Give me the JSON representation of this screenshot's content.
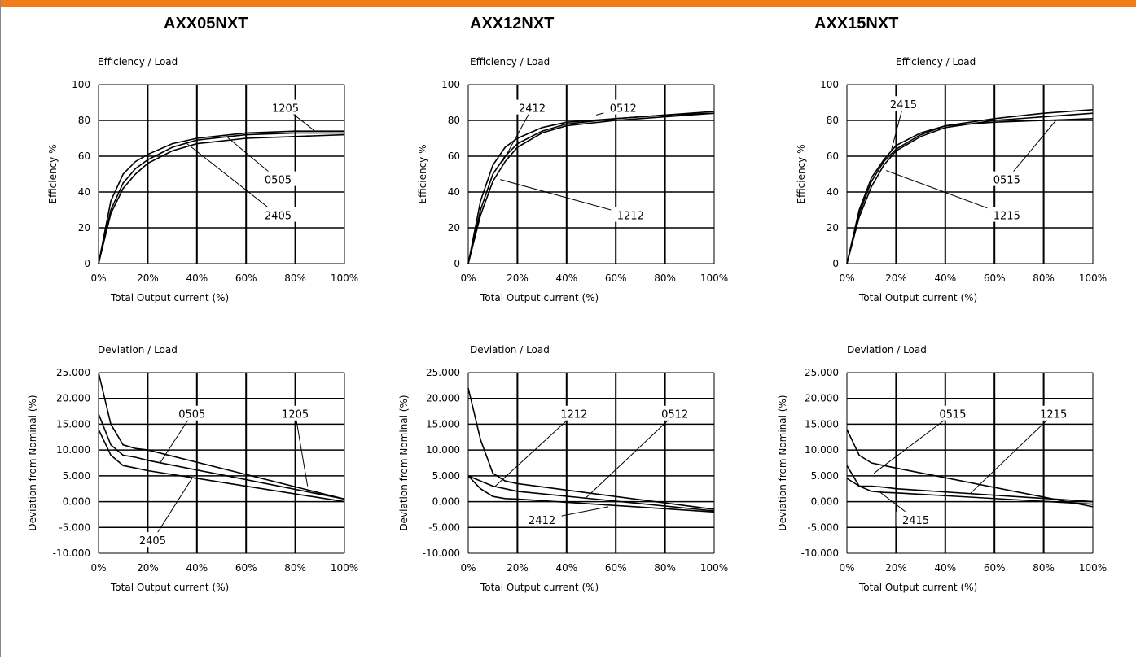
{
  "header": {
    "accent_color": "#f07c1a"
  },
  "models": [
    {
      "title": "AXX05NXT"
    },
    {
      "title": "AXX12NXT"
    },
    {
      "title": "AXX15NXT"
    }
  ],
  "chart_data": [
    {
      "id": "eff-05",
      "type": "line",
      "title": "Efficiency / Load",
      "xlabel": "Total Output current (%)",
      "ylabel": "Efficiency %",
      "xlim": [
        0,
        100
      ],
      "ylim": [
        0,
        100
      ],
      "xticks": [
        "0%",
        "20%",
        "40%",
        "60%",
        "80%",
        "100%"
      ],
      "yticks": [
        "0",
        "20",
        "40",
        "60",
        "80",
        "100"
      ],
      "series": [
        {
          "name": "1205",
          "x": [
            0,
            5,
            10,
            15,
            20,
            30,
            40,
            60,
            80,
            100
          ],
          "y": [
            0,
            35,
            50,
            57,
            61,
            67,
            70,
            73,
            74,
            74
          ]
        },
        {
          "name": "0505",
          "x": [
            0,
            5,
            10,
            15,
            20,
            30,
            40,
            60,
            80,
            100
          ],
          "y": [
            0,
            30,
            45,
            53,
            58,
            65,
            69,
            72,
            73,
            73
          ]
        },
        {
          "name": "2405",
          "x": [
            0,
            5,
            10,
            15,
            20,
            30,
            40,
            60,
            80,
            100
          ],
          "y": [
            0,
            28,
            42,
            50,
            56,
            63,
            67,
            70,
            71,
            72
          ]
        }
      ],
      "annotations": [
        {
          "text": "1205",
          "x": 76,
          "y": 87,
          "tx": 88,
          "ty": 74
        },
        {
          "text": "0505",
          "x": 73,
          "y": 47,
          "tx": 52,
          "ty": 71
        },
        {
          "text": "2405",
          "x": 73,
          "y": 27,
          "tx": 36,
          "ty": 67
        }
      ]
    },
    {
      "id": "eff-12",
      "type": "line",
      "title": "Efficiency / Load",
      "xlabel": "Total Output current (%)",
      "ylabel": "Efficiency %",
      "xlim": [
        0,
        100
      ],
      "ylim": [
        0,
        100
      ],
      "xticks": [
        "0%",
        "20%",
        "40%",
        "60%",
        "80%",
        "100%"
      ],
      "yticks": [
        "0",
        "20",
        "40",
        "60",
        "80",
        "100"
      ],
      "series": [
        {
          "name": "0512",
          "x": [
            0,
            5,
            10,
            15,
            20,
            30,
            40,
            60,
            80,
            100
          ],
          "y": [
            0,
            35,
            55,
            65,
            70,
            76,
            79,
            81,
            83,
            84
          ]
        },
        {
          "name": "2412",
          "x": [
            0,
            5,
            10,
            15,
            20,
            30,
            40,
            60,
            80,
            100
          ],
          "y": [
            0,
            30,
            50,
            60,
            67,
            74,
            78,
            81,
            83,
            85
          ]
        },
        {
          "name": "1212",
          "x": [
            0,
            5,
            10,
            15,
            20,
            30,
            40,
            60,
            80,
            100
          ],
          "y": [
            0,
            27,
            46,
            57,
            65,
            73,
            77,
            80,
            82,
            84
          ]
        }
      ],
      "annotations": [
        {
          "text": "2412",
          "x": 26,
          "y": 87,
          "tx": 14,
          "ty": 57
        },
        {
          "text": "0512",
          "x": 63,
          "y": 87,
          "tx": 52,
          "ty": 83
        },
        {
          "text": "1212",
          "x": 66,
          "y": 27,
          "tx": 13,
          "ty": 47
        }
      ]
    },
    {
      "id": "eff-15",
      "type": "line",
      "title": "Efficiency / Load",
      "xlabel": "Total Output current (%)",
      "ylabel": "Efficiency %",
      "xlim": [
        0,
        100
      ],
      "ylim": [
        0,
        100
      ],
      "xticks": [
        "0%",
        "20%",
        "40%",
        "60%",
        "80%",
        "100%"
      ],
      "yticks": [
        "0",
        "20",
        "40",
        "60",
        "80",
        "100"
      ],
      "series": [
        {
          "name": "2415",
          "x": [
            0,
            5,
            10,
            15,
            20,
            30,
            40,
            60,
            80,
            100
          ],
          "y": [
            0,
            30,
            48,
            58,
            66,
            73,
            77,
            81,
            84,
            86
          ]
        },
        {
          "name": "0515",
          "x": [
            0,
            5,
            10,
            15,
            20,
            30,
            40,
            60,
            80,
            100
          ],
          "y": [
            0,
            28,
            46,
            57,
            64,
            72,
            77,
            79,
            80,
            81
          ]
        },
        {
          "name": "1215",
          "x": [
            0,
            5,
            10,
            15,
            20,
            30,
            40,
            60,
            80,
            100
          ],
          "y": [
            0,
            26,
            43,
            55,
            63,
            71,
            76,
            80,
            82,
            84
          ]
        }
      ],
      "annotations": [
        {
          "text": "2415",
          "x": 23,
          "y": 89,
          "tx": 18,
          "ty": 63
        },
        {
          "text": "0515",
          "x": 65,
          "y": 47,
          "tx": 85,
          "ty": 80
        },
        {
          "text": "1215",
          "x": 65,
          "y": 27,
          "tx": 16,
          "ty": 52
        }
      ]
    },
    {
      "id": "dev-05",
      "type": "line",
      "title": "Deviation / Load",
      "xlabel": "Total Output current (%)",
      "ylabel": "Deviation from Nominal (%)",
      "xlim": [
        0,
        100
      ],
      "ylim": [
        -10,
        25
      ],
      "xticks": [
        "0%",
        "20%",
        "40%",
        "60%",
        "80%",
        "100%"
      ],
      "yticks": [
        "-10.000",
        "-5.000",
        "0.000",
        "5.000",
        "10.000",
        "15.000",
        "20.000",
        "25.000"
      ],
      "series": [
        {
          "name": "1205",
          "x": [
            0,
            5,
            10,
            15,
            20,
            100
          ],
          "y": [
            25,
            15,
            11,
            10.3,
            10,
            0.5
          ]
        },
        {
          "name": "0505",
          "x": [
            0,
            5,
            10,
            15,
            20,
            100
          ],
          "y": [
            17,
            11,
            9,
            8.6,
            8,
            0.5
          ]
        },
        {
          "name": "2405",
          "x": [
            0,
            5,
            10,
            15,
            20,
            100
          ],
          "y": [
            14,
            9,
            7,
            6.5,
            6,
            0
          ]
        }
      ],
      "annotations": [
        {
          "text": "0505",
          "x": 38,
          "y": 17,
          "tx": 25,
          "ty": 7.5
        },
        {
          "text": "1205",
          "x": 80,
          "y": 17,
          "tx": 85,
          "ty": 3
        },
        {
          "text": "2405",
          "x": 22,
          "y": -7.5,
          "tx": 38,
          "ty": 4.5
        }
      ]
    },
    {
      "id": "dev-12",
      "type": "line",
      "title": "Deviation / Load",
      "xlabel": "Total Output current (%)",
      "ylabel": "Deviation from Nominal (%)",
      "xlim": [
        0,
        100
      ],
      "ylim": [
        -10,
        25
      ],
      "xticks": [
        "0%",
        "20%",
        "40%",
        "60%",
        "80%",
        "100%"
      ],
      "yticks": [
        "-10.000",
        "-5.000",
        "0.000",
        "5.000",
        "10.000",
        "15.000",
        "20.000",
        "25.000"
      ],
      "series": [
        {
          "name": "1212",
          "x": [
            0,
            5,
            10,
            15,
            20,
            100
          ],
          "y": [
            22,
            12,
            5.5,
            4,
            3.5,
            -1.5
          ]
        },
        {
          "name": "0512",
          "x": [
            0,
            5,
            10,
            15,
            20,
            100
          ],
          "y": [
            5,
            4,
            3,
            2.5,
            2,
            -1.8
          ]
        },
        {
          "name": "2412",
          "x": [
            0,
            5,
            10,
            15,
            20,
            100
          ],
          "y": [
            5,
            2.5,
            1,
            0.6,
            0.5,
            -2
          ]
        }
      ],
      "annotations": [
        {
          "text": "1212",
          "x": 43,
          "y": 17,
          "tx": 11,
          "ty": 3
        },
        {
          "text": "0512",
          "x": 84,
          "y": 17,
          "tx": 48,
          "ty": 0.8
        },
        {
          "text": "2412",
          "x": 30,
          "y": -3.5,
          "tx": 57,
          "ty": -1
        }
      ]
    },
    {
      "id": "dev-15",
      "type": "line",
      "title": "Deviation / Load",
      "xlabel": "Total Output current (%)",
      "ylabel": "Deviation from Nominal (%)",
      "xlim": [
        0,
        100
      ],
      "ylim": [
        -10,
        25
      ],
      "xticks": [
        "0%",
        "20%",
        "40%",
        "60%",
        "80%",
        "100%"
      ],
      "yticks": [
        "-10.000",
        "-5.000",
        "0.000",
        "5.000",
        "10.000",
        "15.000",
        "20.000",
        "25.000"
      ],
      "series": [
        {
          "name": "0515",
          "x": [
            0,
            5,
            10,
            15,
            20,
            100
          ],
          "y": [
            14,
            9,
            7.5,
            7,
            6.5,
            -1
          ]
        },
        {
          "name": "1215",
          "x": [
            0,
            5,
            10,
            15,
            20,
            100
          ],
          "y": [
            7,
            3,
            2,
            1.8,
            1.7,
            -0.5
          ]
        },
        {
          "name": "2415",
          "x": [
            0,
            5,
            10,
            15,
            20,
            100
          ],
          "y": [
            4.5,
            3,
            3,
            2.8,
            2.5,
            0
          ]
        }
      ],
      "annotations": [
        {
          "text": "0515",
          "x": 43,
          "y": 17,
          "tx": 11,
          "ty": 5.5
        },
        {
          "text": "1215",
          "x": 84,
          "y": 17,
          "tx": 50,
          "ty": 1.5
        },
        {
          "text": "2415",
          "x": 28,
          "y": -3.5,
          "tx": 13,
          "ty": 2
        }
      ]
    }
  ]
}
